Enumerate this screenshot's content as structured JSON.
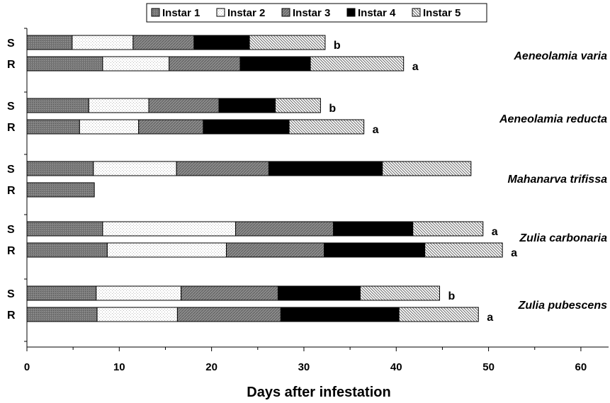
{
  "chart_data": {
    "type": "bar",
    "orientation": "horizontal",
    "stacked": true,
    "title": "",
    "xlabel": "Days after infestation",
    "ylabel": "",
    "xlim": [
      0,
      63
    ],
    "xticks": [
      0,
      10,
      20,
      30,
      40,
      50,
      60
    ],
    "grid": false,
    "legend_position": "top",
    "series_names": [
      "Instar 1",
      "Instar 2",
      "Instar 3",
      "Instar 4",
      "Instar 5"
    ],
    "groups": [
      {
        "species": "Aeneolamia varia",
        "bars": [
          {
            "label": "S",
            "values": [
              4.9,
              6.6,
              6.6,
              6.0,
              8.2
            ],
            "letter": "b"
          },
          {
            "label": "R",
            "values": [
              8.2,
              7.2,
              7.7,
              7.6,
              10.1
            ],
            "letter": "a"
          }
        ]
      },
      {
        "species": "Aeneolamia reducta",
        "bars": [
          {
            "label": "S",
            "values": [
              6.7,
              6.5,
              7.6,
              6.1,
              4.9
            ],
            "letter": "b"
          },
          {
            "label": "R",
            "values": [
              5.7,
              6.4,
              7.0,
              9.3,
              8.1
            ],
            "letter": "a"
          }
        ]
      },
      {
        "species": "Mahanarva trifissa",
        "bars": [
          {
            "label": "S",
            "values": [
              7.2,
              9.0,
              10.0,
              12.3,
              9.6
            ],
            "letter": ""
          },
          {
            "label": "R",
            "values": [
              7.3,
              0,
              0,
              0,
              0
            ],
            "letter": ""
          }
        ]
      },
      {
        "species": "Zulia carbonaria",
        "bars": [
          {
            "label": "S",
            "values": [
              8.2,
              14.4,
              10.6,
              8.6,
              7.6
            ],
            "letter": "a"
          },
          {
            "label": "R",
            "values": [
              8.7,
              12.9,
              10.6,
              10.9,
              8.4
            ],
            "letter": "a"
          }
        ]
      },
      {
        "species": "Zulia pubescens",
        "bars": [
          {
            "label": "S",
            "values": [
              7.5,
              9.2,
              10.5,
              8.9,
              8.6
            ],
            "letter": "b"
          },
          {
            "label": "R",
            "values": [
              7.6,
              8.7,
              11.2,
              12.8,
              8.6
            ],
            "letter": "a"
          }
        ]
      }
    ]
  }
}
